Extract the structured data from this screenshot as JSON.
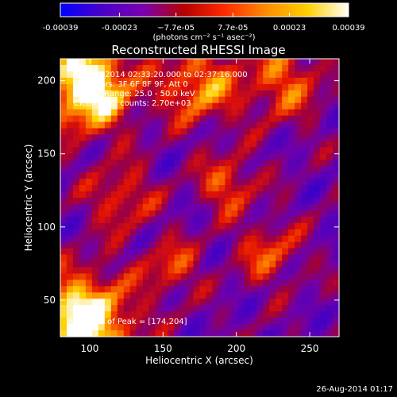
{
  "colorbar": {
    "tick_labels": [
      "-0.00039",
      "-0.00023",
      "−7.7e-05",
      "7.7e-05",
      "0.00023",
      "0.00039"
    ],
    "tick_values": [
      -0.00039,
      -0.00023,
      -7.7e-05,
      7.7e-05,
      0.00023,
      0.00039
    ],
    "range": [
      -0.00039,
      0.00039
    ],
    "units_label": "(photons cm⁻² s⁻¹ asec⁻²)",
    "colormap": [
      "#0000ff",
      "#4a00c8",
      "#7a00b0",
      "#b40000",
      "#ff2a00",
      "#ff8c00",
      "#ffd000",
      "#ffffff"
    ]
  },
  "plot": {
    "title": "Reconstructed RHESSI Image",
    "xlabel": "Heliocentric X (arcsec)",
    "ylabel": "Heliocentric Y (arcsec)",
    "xlim": [
      80,
      270
    ],
    "ylim": [
      25,
      215
    ],
    "xticks": [
      100,
      150,
      200,
      250
    ],
    "yticks": [
      50,
      100,
      150,
      200
    ],
    "info_lines": [
      "18-Aug-2014 02:33:20.000 to 02:37:16.000",
      "Detectors: 3F 6F 8F 9F, Att 0",
      "Energy Range: 25.0 - 50.0 keV",
      "Clean      Total counts: 2.70e+03"
    ],
    "peak_label": "Position of Peak = [174,204]",
    "peak_position": [
      174,
      204
    ]
  },
  "timestamp": "26-Aug-2014 01:17"
}
